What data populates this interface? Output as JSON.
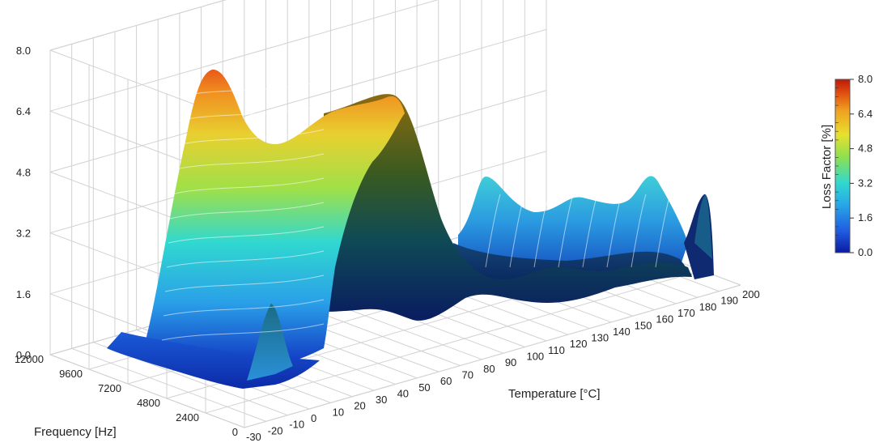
{
  "chart_data": {
    "type": "surface3d",
    "title": "",
    "xlabel": "Temperature [°C]",
    "ylabel": "Frequency [Hz]",
    "zlabel": "",
    "colorbar_label": "Loss Factor [%]",
    "x_ticks": [
      "-30",
      "-20",
      "-10",
      "0",
      "10",
      "20",
      "30",
      "40",
      "50",
      "60",
      "70",
      "80",
      "90",
      "100",
      "110",
      "120",
      "130",
      "140",
      "150",
      "160",
      "170",
      "180",
      "190",
      "200"
    ],
    "y_ticks": [
      "0",
      "2400",
      "4800",
      "7200",
      "9600",
      "12000"
    ],
    "z_ticks": [
      "0.0",
      "1.6",
      "3.2",
      "4.8",
      "6.4",
      "8.0"
    ],
    "colorbar_ticks": [
      "0.0",
      "1.6",
      "3.2",
      "4.8",
      "6.4",
      "8.0"
    ],
    "xlim": [
      -30,
      200
    ],
    "ylim": [
      0,
      12000
    ],
    "zlim": [
      0,
      8
    ],
    "colormap": [
      "#0a1aa0",
      "#1f5ae0",
      "#28a8e8",
      "#30d8d0",
      "#8ce050",
      "#e8e030",
      "#f0a020",
      "#e05010",
      "#c01808"
    ],
    "surface_peaks": [
      {
        "x": 0,
        "y": 12000,
        "z": 7.6
      },
      {
        "x": 20,
        "y": 12000,
        "z": 7.5
      },
      {
        "x": 40,
        "y": 12000,
        "z": 5.4
      },
      {
        "x": 110,
        "y": 12000,
        "z": 3.5
      },
      {
        "x": 160,
        "y": 12000,
        "z": 3.0
      },
      {
        "x": 190,
        "y": 6000,
        "z": 3.3
      },
      {
        "x": -5,
        "y": 1000,
        "z": 3.1
      }
    ]
  }
}
